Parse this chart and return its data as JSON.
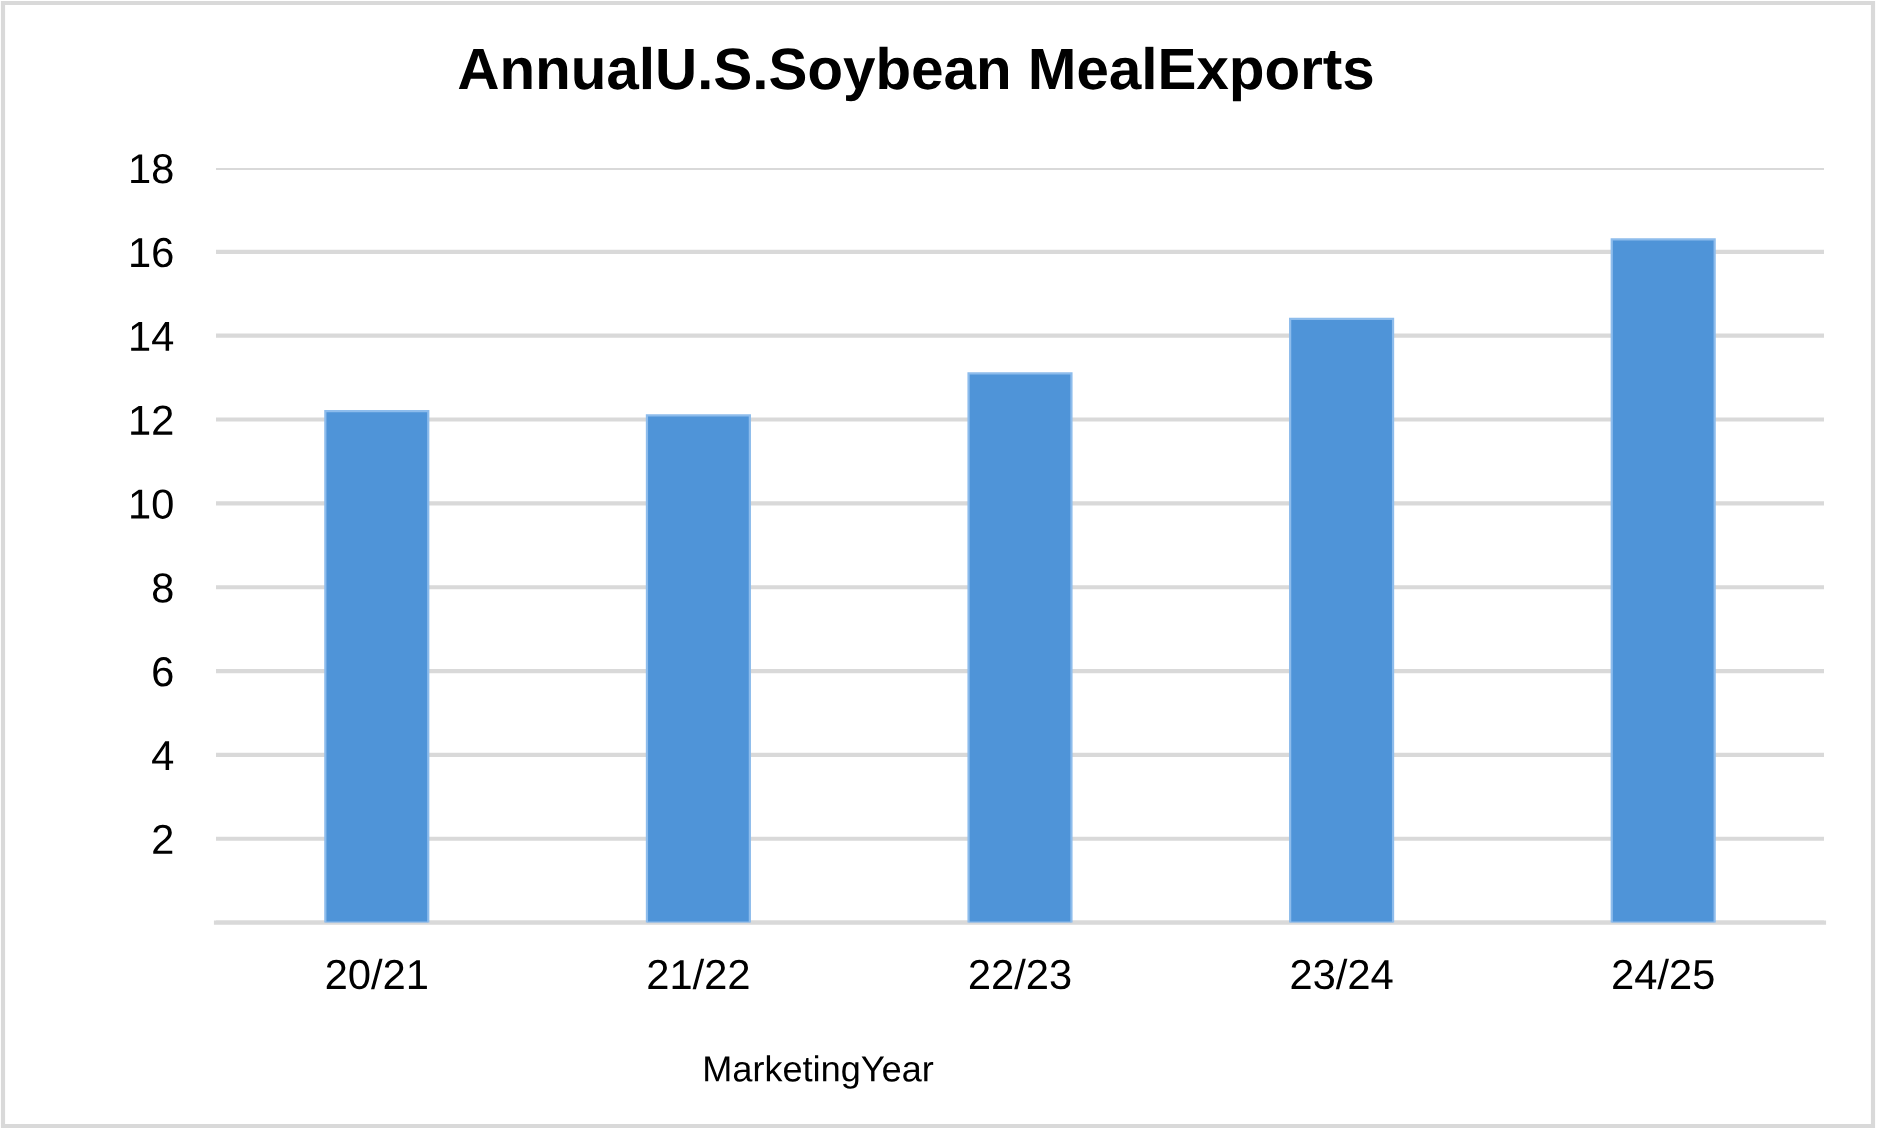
{
  "chart_data": {
    "type": "bar",
    "title": "AnnualU.S.Soybean MealExports",
    "xlabel": "MarketingYear",
    "categories": [
      "20/21",
      "21/22",
      "22/23",
      "23/24",
      "24/25"
    ],
    "values": [
      12.2,
      12.1,
      13.1,
      14.4,
      16.3
    ],
    "color": "#4f94d8",
    "ylim": [
      0,
      18
    ],
    "yticks": [
      {
        "value": 0,
        "label": null
      },
      2,
      4,
      6,
      8,
      10,
      12,
      14,
      16,
      18
    ],
    "grid": "y"
  }
}
